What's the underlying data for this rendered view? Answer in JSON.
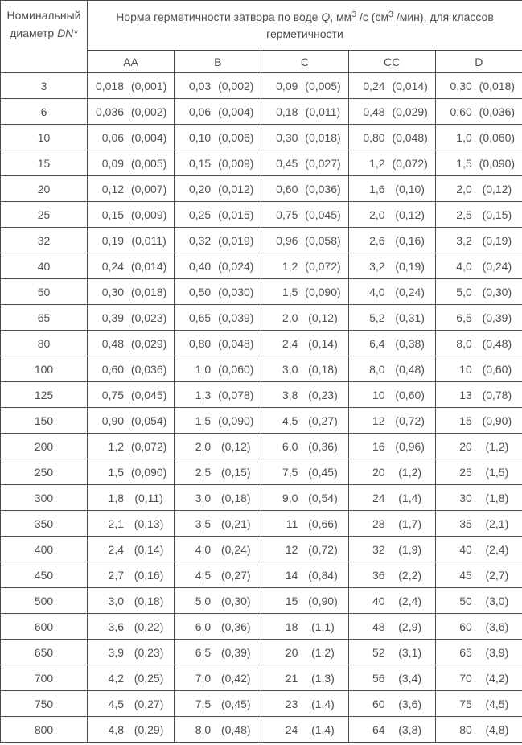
{
  "table": {
    "dn_header": {
      "line1": "Номинальный",
      "line2_prefix": "диаметр ",
      "line2_em": "DN*"
    },
    "main_header": {
      "p1": "Норма герметичности затвора по воде ",
      "q": "Q",
      "p2": ", мм",
      "sup1": "3",
      "p3": " /с (см",
      "sup2": "3",
      "p4": " /мин), для классов герметичности"
    },
    "class_headers": [
      "AA",
      "B",
      "C",
      "CC",
      "D"
    ],
    "rows": [
      {
        "dn": "3",
        "values": [
          [
            "0,018",
            "(0,001)"
          ],
          [
            "0,03",
            "(0,002)"
          ],
          [
            "0,09",
            "(0,005)"
          ],
          [
            "0,24",
            "(0,014)"
          ],
          [
            "0,30",
            "(0,018)"
          ]
        ]
      },
      {
        "dn": "6",
        "values": [
          [
            "0,036",
            "(0,002)"
          ],
          [
            "0,06",
            "(0,004)"
          ],
          [
            "0,18",
            "(0,011)"
          ],
          [
            "0,48",
            "(0,029)"
          ],
          [
            "0,60",
            "(0,036)"
          ]
        ]
      },
      {
        "dn": "10",
        "values": [
          [
            "0,06",
            "(0,004)"
          ],
          [
            "0,10",
            "(0,006)"
          ],
          [
            "0,30",
            "(0,018)"
          ],
          [
            "0,80",
            "(0,048)"
          ],
          [
            "1,0",
            "(0,060)"
          ]
        ]
      },
      {
        "dn": "15",
        "values": [
          [
            "0,09",
            "(0,005)"
          ],
          [
            "0,15",
            "(0,009)"
          ],
          [
            "0,45",
            "(0,027)"
          ],
          [
            "1,2",
            "(0,072)"
          ],
          [
            "1,5",
            "(0,090)"
          ]
        ]
      },
      {
        "dn": "20",
        "values": [
          [
            "0,12",
            "(0,007)"
          ],
          [
            "0,20",
            "(0,012)"
          ],
          [
            "0,60",
            "(0,036)"
          ],
          [
            "1,6",
            "(0,10)"
          ],
          [
            "2,0",
            "(0,12)"
          ]
        ]
      },
      {
        "dn": "25",
        "values": [
          [
            "0,15",
            "(0,009)"
          ],
          [
            "0,25",
            "(0,015)"
          ],
          [
            "0,75",
            "(0,045)"
          ],
          [
            "2,0",
            "(0,12)"
          ],
          [
            "2,5",
            "(0,15)"
          ]
        ]
      },
      {
        "dn": "32",
        "values": [
          [
            "0,19",
            "(0,011)"
          ],
          [
            "0,32",
            "(0,019)"
          ],
          [
            "0,96",
            "(0,058)"
          ],
          [
            "2,6",
            "(0,16)"
          ],
          [
            "3,2",
            "(0,19)"
          ]
        ]
      },
      {
        "dn": "40",
        "values": [
          [
            "0,24",
            "(0,014)"
          ],
          [
            "0,40",
            "(0,024)"
          ],
          [
            "1,2",
            "(0,072)"
          ],
          [
            "3,2",
            "(0,19)"
          ],
          [
            "4,0",
            "(0,24)"
          ]
        ]
      },
      {
        "dn": "50",
        "values": [
          [
            "0,30",
            "(0,018)"
          ],
          [
            "0,50",
            "(0,030)"
          ],
          [
            "1,5",
            "(0,090)"
          ],
          [
            "4,0",
            "(0,24)"
          ],
          [
            "5,0",
            "(0,30)"
          ]
        ]
      },
      {
        "dn": "65",
        "values": [
          [
            "0,39",
            "(0,023)"
          ],
          [
            "0,65",
            "(0,039)"
          ],
          [
            "2,0",
            "(0,12)"
          ],
          [
            "5,2",
            "(0,31)"
          ],
          [
            "6,5",
            "(0,39)"
          ]
        ]
      },
      {
        "dn": "80",
        "values": [
          [
            "0,48",
            "(0,029)"
          ],
          [
            "0,80",
            "(0,048)"
          ],
          [
            "2,4",
            "(0,14)"
          ],
          [
            "6,4",
            "(0,38)"
          ],
          [
            "8,0",
            "(0,48)"
          ]
        ]
      },
      {
        "dn": "100",
        "values": [
          [
            "0,60",
            "(0,036)"
          ],
          [
            "1,0",
            "(0,060)"
          ],
          [
            "3,0",
            "(0,18)"
          ],
          [
            "8,0",
            "(0,48)"
          ],
          [
            "10",
            "(0,60)"
          ]
        ]
      },
      {
        "dn": "125",
        "values": [
          [
            "0,75",
            "(0,045)"
          ],
          [
            "1,3",
            "(0,078)"
          ],
          [
            "3,8",
            "(0,23)"
          ],
          [
            "10",
            "(0,60)"
          ],
          [
            "13",
            "(0,78)"
          ]
        ]
      },
      {
        "dn": "150",
        "values": [
          [
            "0,90",
            "(0,054)"
          ],
          [
            "1,5",
            "(0,090)"
          ],
          [
            "4,5",
            "(0,27)"
          ],
          [
            "12",
            "(0,72)"
          ],
          [
            "15",
            "(0,90)"
          ]
        ]
      },
      {
        "dn": "200",
        "values": [
          [
            "1,2",
            "(0,072)"
          ],
          [
            "2,0",
            "(0,12)"
          ],
          [
            "6,0",
            "(0,36)"
          ],
          [
            "16",
            "(0,96)"
          ],
          [
            "20",
            "(1,2)"
          ]
        ]
      },
      {
        "dn": "250",
        "values": [
          [
            "1,5",
            "(0,090)"
          ],
          [
            "2,5",
            "(0,15)"
          ],
          [
            "7,5",
            "(0,45)"
          ],
          [
            "20",
            "(1,2)"
          ],
          [
            "25",
            "(1,5)"
          ]
        ]
      },
      {
        "dn": "300",
        "values": [
          [
            "1,8",
            "(0,11)"
          ],
          [
            "3,0",
            "(0,18)"
          ],
          [
            "9,0",
            "(0,54)"
          ],
          [
            "24",
            "(1,4)"
          ],
          [
            "30",
            "(1,8)"
          ]
        ]
      },
      {
        "dn": "350",
        "values": [
          [
            "2,1",
            "(0,13)"
          ],
          [
            "3,5",
            "(0,21)"
          ],
          [
            "11",
            "(0,66)"
          ],
          [
            "28",
            "(1,7)"
          ],
          [
            "35",
            "(2,1)"
          ]
        ]
      },
      {
        "dn": "400",
        "values": [
          [
            "2,4",
            "(0,14)"
          ],
          [
            "4,0",
            "(0,24)"
          ],
          [
            "12",
            "(0,72)"
          ],
          [
            "32",
            "(1,9)"
          ],
          [
            "40",
            "(2,4)"
          ]
        ]
      },
      {
        "dn": "450",
        "values": [
          [
            "2,7",
            "(0,16)"
          ],
          [
            "4,5",
            "(0,27)"
          ],
          [
            "14",
            "(0,84)"
          ],
          [
            "36",
            "(2,2)"
          ],
          [
            "45",
            "(2,7)"
          ]
        ]
      },
      {
        "dn": "500",
        "values": [
          [
            "3,0",
            "(0,18)"
          ],
          [
            "5,0",
            "(0,30)"
          ],
          [
            "15",
            "(0,90)"
          ],
          [
            "40",
            "(2,4)"
          ],
          [
            "50",
            "(3,0)"
          ]
        ]
      },
      {
        "dn": "600",
        "values": [
          [
            "3,6",
            "(0,22)"
          ],
          [
            "6,0",
            "(0,36)"
          ],
          [
            "18",
            "(1,1)"
          ],
          [
            "48",
            "(2,9)"
          ],
          [
            "60",
            "(3,6)"
          ]
        ]
      },
      {
        "dn": "650",
        "values": [
          [
            "3,9",
            "(0,23)"
          ],
          [
            "6,5",
            "(0,39)"
          ],
          [
            "20",
            "(1,2)"
          ],
          [
            "52",
            "(3,1)"
          ],
          [
            "65",
            "(3,9)"
          ]
        ]
      },
      {
        "dn": "700",
        "values": [
          [
            "4,2",
            "(0,25)"
          ],
          [
            "7,0",
            "(0,42)"
          ],
          [
            "21",
            "(1,3)"
          ],
          [
            "56",
            "(3,4)"
          ],
          [
            "70",
            "(4,2)"
          ]
        ]
      },
      {
        "dn": "750",
        "values": [
          [
            "4,5",
            "(0,27)"
          ],
          [
            "7,5",
            "(0,45)"
          ],
          [
            "23",
            "(1,4)"
          ],
          [
            "60",
            "(3,6)"
          ],
          [
            "75",
            "(4,5)"
          ]
        ]
      },
      {
        "dn": "800",
        "values": [
          [
            "4,8",
            "(0,29)"
          ],
          [
            "8,0",
            "(0,48)"
          ],
          [
            "24",
            "(1,4)"
          ],
          [
            "64",
            "(3,8)"
          ],
          [
            "80",
            "(4,8)"
          ]
        ]
      }
    ]
  }
}
